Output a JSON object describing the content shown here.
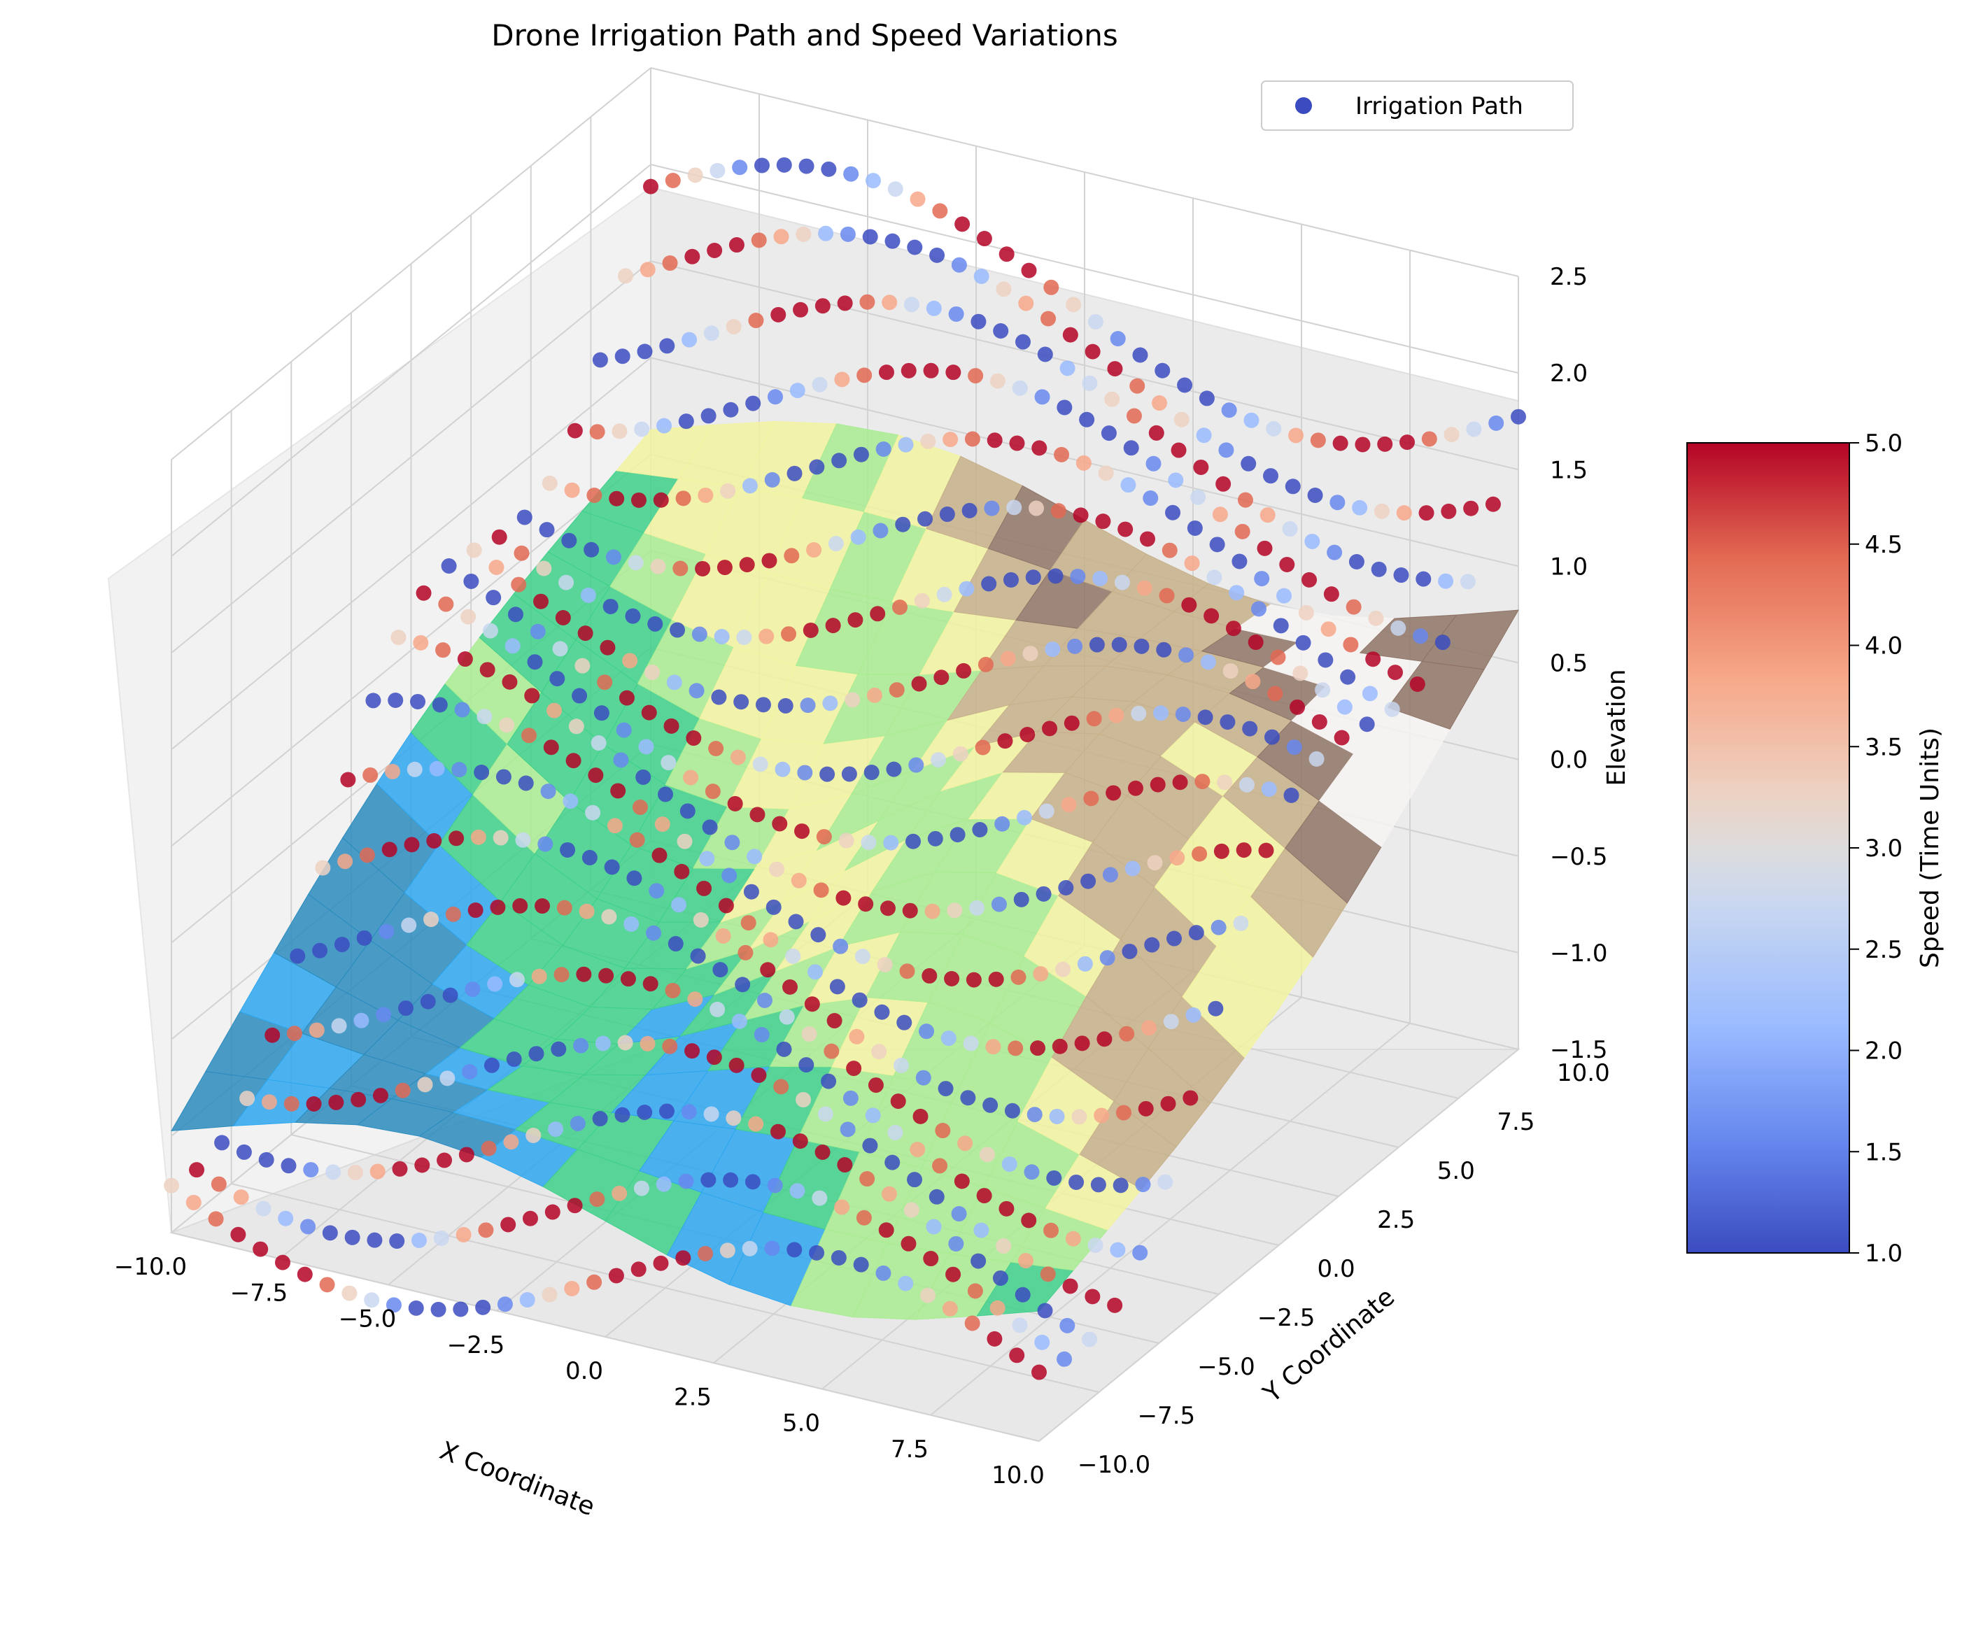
{
  "chart_data": {
    "type": "scatter",
    "title": "Drone Irrigation Path and Speed Variations",
    "xlabel": "X Coordinate",
    "ylabel": "Y Coordinate",
    "zlabel": "Elevation",
    "xlim": [
      -10,
      10
    ],
    "ylim": [
      -10,
      10
    ],
    "zlim": [
      -1.5,
      2.5
    ],
    "x_ticks": [
      "−10.0",
      "−7.5",
      "−5.0",
      "−2.5",
      "0.0",
      "2.5",
      "5.0",
      "7.5",
      "10.0"
    ],
    "y_ticks": [
      "−10.0",
      "−7.5",
      "−5.0",
      "−2.5",
      "0.0",
      "2.5",
      "5.0",
      "7.5",
      "10.0"
    ],
    "z_ticks": [
      "−1.5",
      "−1.0",
      "−0.5",
      "0.0",
      "0.5",
      "1.0",
      "1.5",
      "2.0",
      "2.5"
    ],
    "grid": true,
    "legend": {
      "position": "top-right",
      "entries": [
        "Irrigation Path"
      ]
    },
    "colorbar": {
      "label": "Speed (Time Units)",
      "min": 1.0,
      "max": 5.0,
      "ticks": [
        "1.0",
        "1.5",
        "2.0",
        "2.5",
        "3.0",
        "3.5",
        "4.0",
        "4.5",
        "5.0"
      ],
      "colormap": "coolwarm",
      "colors": [
        "#3b4cc0",
        "#6788ee",
        "#9abbff",
        "#c9d7f0",
        "#edd1c2",
        "#f7a889",
        "#e26952",
        "#b40426"
      ]
    },
    "surface_colormap": [
      "#2b8cbe",
      "#2ea7ef",
      "#3fd08a",
      "#a9ec92",
      "#f2f3a0",
      "#c7b08a",
      "#8f7466",
      "#f7f3f3"
    ],
    "series": [
      {
        "name": "Irrigation Path",
        "marker": "o",
        "color": "#3b4cc0",
        "path_lines": 20,
        "y_range": [
          -10,
          10
        ],
        "x_range": [
          -10,
          10
        ],
        "elevation_range": [
          -1.3,
          2.4
        ],
        "speed_range": [
          1.0,
          5.0
        ]
      }
    ]
  }
}
